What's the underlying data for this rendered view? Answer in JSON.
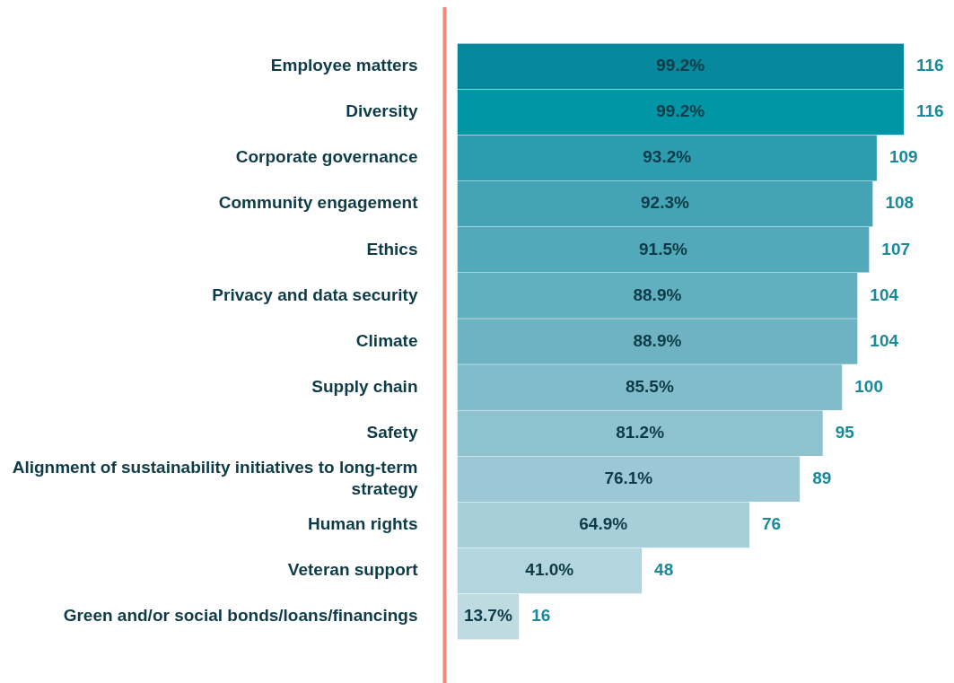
{
  "chart_data": {
    "type": "bar",
    "orientation": "horizontal",
    "categories": [
      "Employee matters",
      "Diversity",
      "Corporate governance",
      "Community engagement",
      "Ethics",
      "Privacy and data security",
      "Climate",
      "Supply chain",
      "Safety",
      "Alignment of sustainability initiatives to long-term strategy",
      "Human rights",
      "Veteran support",
      "Green and/or social bonds/loans/financings"
    ],
    "values": [
      99.2,
      99.2,
      93.2,
      92.3,
      91.5,
      88.9,
      88.9,
      85.5,
      81.2,
      76.1,
      64.9,
      41.0,
      13.7
    ],
    "value_labels": [
      "99.2%",
      "99.2%",
      "93.2%",
      "92.3%",
      "91.5%",
      "88.9%",
      "88.9%",
      "85.5%",
      "81.2%",
      "76.1%",
      "64.9%",
      "41.0%",
      "13.7%"
    ],
    "colors": [
      "#07879b",
      "#0096a6",
      "#2c9caf",
      "#44a3b5",
      "#52a9ba",
      "#62afbf",
      "#6fb3c3",
      "#80bccb",
      "#8ec2cf",
      "#9bc8d4",
      "#a6cfd9",
      "#b3d5de",
      "#bfdbe2"
    ],
    "xlim": [
      0,
      100
    ],
    "tick_labels": "y",
    "grid": false,
    "legend": false,
    "annotations": [
      {
        "text": "116",
        "x": 99.2,
        "y": "Employee matters"
      },
      {
        "text": "116",
        "x": 99.2,
        "y": "Diversity"
      },
      {
        "text": "109",
        "x": 93.2,
        "y": "Corporate governance"
      },
      {
        "text": "108",
        "x": 92.3,
        "y": "Community engagement"
      },
      {
        "text": "107",
        "x": 91.5,
        "y": "Ethics"
      },
      {
        "text": "104",
        "x": 88.9,
        "y": "Privacy and data security"
      },
      {
        "text": "104",
        "x": 88.9,
        "y": "Climate"
      },
      {
        "text": "100",
        "x": 85.5,
        "y": "Supply chain"
      },
      {
        "text": "95",
        "x": 81.2,
        "y": "Safety"
      },
      {
        "text": "89",
        "x": 76.1,
        "y": "Alignment of sustainability initiatives to long-term strategy"
      },
      {
        "text": "76",
        "x": 64.9,
        "y": "Human rights"
      },
      {
        "text": "48",
        "x": 41.0,
        "y": "Veteran support"
      },
      {
        "text": "16",
        "x": 13.7,
        "y": "Green and/or social bonds/loans/financings"
      }
    ]
  }
}
